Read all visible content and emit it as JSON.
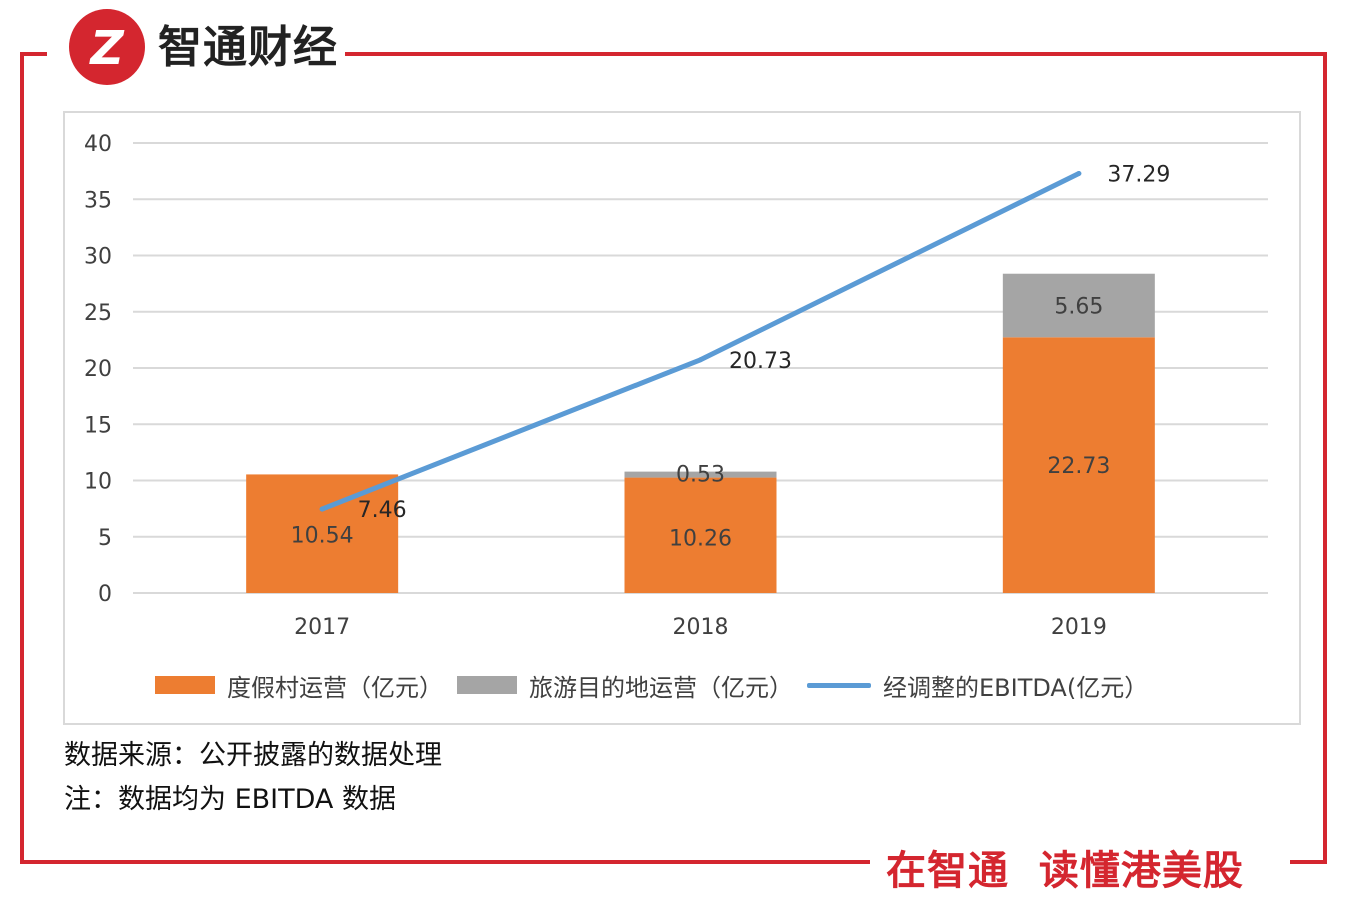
{
  "brand": {
    "name": "智通财经",
    "logo_text": "Z",
    "slogan": "在智通  读懂港美股",
    "color": "#d4262f"
  },
  "notes": {
    "source": "数据来源：公开披露的数据处理",
    "remark": "注：数据均为 EBITDA 数据"
  },
  "legend": {
    "resort": "度假村运营（亿元）",
    "destination": "旅游目的地运营（亿元）",
    "ebitda": "经调整的EBITDA(亿元）"
  },
  "chart_data": {
    "type": "bar",
    "stacked": true,
    "categories": [
      "2017",
      "2018",
      "2019"
    ],
    "series": [
      {
        "name": "度假村运营（亿元）",
        "kind": "bar",
        "color": "#ed7d31",
        "values": [
          10.54,
          10.26,
          22.73
        ]
      },
      {
        "name": "旅游目的地运营（亿元）",
        "kind": "bar",
        "color": "#a5a5a5",
        "values": [
          0,
          0.53,
          5.65
        ]
      },
      {
        "name": "经调整的EBITDA(亿元）",
        "kind": "line",
        "color": "#5b9bd5",
        "values": [
          7.46,
          20.73,
          37.29
        ]
      }
    ],
    "ylim": [
      0,
      40
    ],
    "yticks": [
      0,
      5,
      10,
      15,
      20,
      25,
      30,
      35,
      40
    ],
    "grid": true,
    "legend_position": "bottom"
  }
}
